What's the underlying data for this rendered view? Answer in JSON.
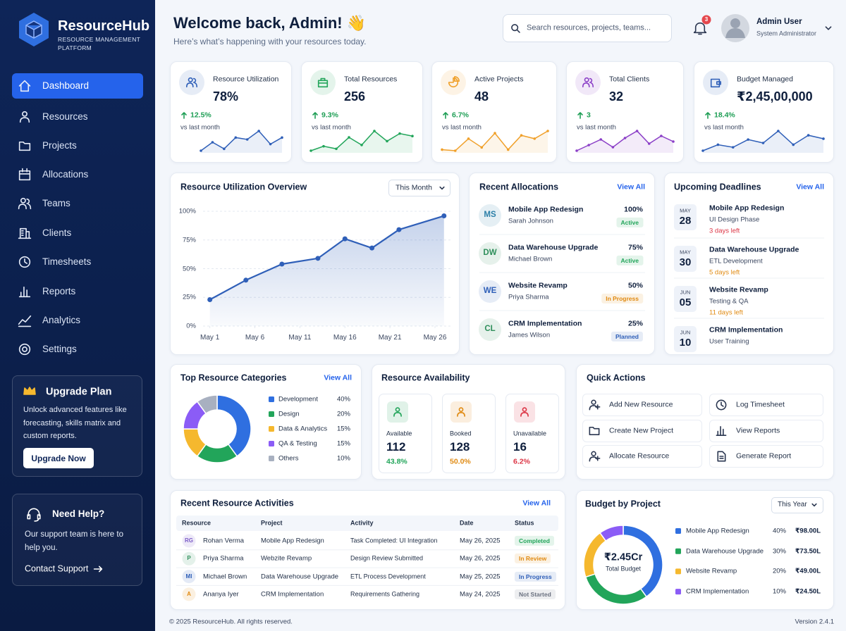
{
  "sidebar": {
    "brand": "ResourceHub",
    "tagline": "RESOURCE MANAGEMENT PLATFORM",
    "nav": [
      "Dashboard",
      "Resources",
      "Projects",
      "Allocations",
      "Teams",
      "Clients",
      "Timesheets",
      "Reports",
      "Analytics",
      "Settings"
    ],
    "upgrade": {
      "title": "Upgrade Plan",
      "text": "Unlock advanced features like forecasting, skills matrix and custom reports.",
      "button": "Upgrade Now"
    },
    "help": {
      "title": "Need Help?",
      "text": "Our support team is here to help you.",
      "link": "Contact Support"
    }
  },
  "header": {
    "title": "Welcome back, Admin! 👋",
    "subtitle": "Here’s what’s happening with your resources today.",
    "search_placeholder": "Search resources, projects, teams...",
    "notifications": 3,
    "user": "Admin User",
    "role": "System Administrator"
  },
  "kpis": [
    {
      "label": "Resource Utilization",
      "value": "78%",
      "change": "12.5%",
      "note": "vs last month",
      "color": "#2f5fb8",
      "trend": [
        30,
        48,
        34,
        58,
        54,
        72,
        44,
        58
      ]
    },
    {
      "label": "Total Resources",
      "value": "256",
      "change": "9.3%",
      "note": "vs last month",
      "color": "#22a55a",
      "trend": [
        25,
        32,
        28,
        46,
        34,
        56,
        40,
        52,
        48
      ]
    },
    {
      "label": "Active Projects",
      "value": "48",
      "change": "6.7%",
      "note": "vs last month",
      "color": "#f0a02a",
      "trend": [
        30,
        28,
        50,
        34,
        60,
        30,
        56,
        50,
        64
      ]
    },
    {
      "label": "Total Clients",
      "value": "32",
      "change": "3",
      "note": "vs last month",
      "color": "#8b3fc7",
      "trend": [
        20,
        36,
        52,
        30,
        56,
        76,
        40,
        62,
        46
      ]
    },
    {
      "label": "Budget Managed",
      "value": "₹2,45,00,000",
      "change": "18.4%",
      "note": "vs last month",
      "color": "#2f5fb8",
      "trend": [
        26,
        40,
        34,
        52,
        44,
        72,
        40,
        62,
        54
      ]
    }
  ],
  "utilization_chart": {
    "type": "line",
    "title": "Resource Utilization Overview",
    "period": "This Month",
    "x": [
      1,
      5,
      9,
      13,
      16,
      19,
      22,
      27
    ],
    "values": [
      23,
      40,
      54,
      59,
      76,
      68,
      84,
      96
    ],
    "xlim": [
      0.4,
      27.8
    ],
    "xticks": [
      {
        "value": 1,
        "label": "May 1"
      },
      {
        "value": 6,
        "label": "May 6"
      },
      {
        "value": 11,
        "label": "May 11"
      },
      {
        "value": 16,
        "label": "May 16"
      },
      {
        "value": 21,
        "label": "May 21"
      },
      {
        "value": 26,
        "label": "May 26"
      }
    ],
    "ylim": [
      0,
      100
    ],
    "yticks": [
      {
        "value": 0,
        "label": "0%"
      },
      {
        "value": 25,
        "label": "25%"
      },
      {
        "value": 50,
        "label": "50%"
      },
      {
        "value": 75,
        "label": "75%"
      },
      {
        "value": 100,
        "label": "100%"
      }
    ],
    "color": "#2f5fb8",
    "grid": true
  },
  "recent_allocations": {
    "title": "Recent Allocations",
    "link": "View All",
    "items": [
      {
        "initials": "MS",
        "project": "Mobile App Redesign",
        "person": "Sarah Johnson",
        "allocation": "100%",
        "status": "Active",
        "status_color": "#22a55a"
      },
      {
        "initials": "DW",
        "project": "Data Warehouse Upgrade",
        "person": "Michael Brown",
        "allocation": "75%",
        "status": "Active",
        "status_color": "#22a55a"
      },
      {
        "initials": "WE",
        "project": "Website Revamp",
        "person": "Priya Sharma",
        "allocation": "50%",
        "status": "In Progress",
        "status_color": "#e08a12"
      },
      {
        "initials": "CL",
        "project": "CRM Implementation",
        "person": "James Wilson",
        "allocation": "25%",
        "status": "Planned",
        "status_color": "#2f5fb8"
      }
    ]
  },
  "deadlines": {
    "title": "Upcoming Deadlines",
    "link": "View All",
    "items": [
      {
        "month": "MAY",
        "day": "28",
        "project": "Mobile App Redesign",
        "phase": "UI Design Phase",
        "remaining": "3 days left",
        "color": "#dc3545"
      },
      {
        "month": "MAY",
        "day": "30",
        "project": "Data Warehouse Upgrade",
        "phase": "ETL Development",
        "remaining": "5 days left",
        "color": "#e08a12"
      },
      {
        "month": "JUN",
        "day": "05",
        "project": "Website Revamp",
        "phase": "Testing & QA",
        "remaining": "11 days left",
        "color": "#e08a12"
      },
      {
        "month": "JUN",
        "day": "10",
        "project": "CRM Implementation",
        "phase": "User Training"
      }
    ]
  },
  "categories": {
    "type": "pie",
    "title": "Top Resource Categories",
    "link": "View All",
    "categories": [
      "Development",
      "Design",
      "Data & Analytics",
      "QA & Testing",
      "Others"
    ],
    "values": [
      40,
      20,
      15,
      15,
      10
    ],
    "value_labels": [
      "40%",
      "20%",
      "15%",
      "15%",
      "10%"
    ],
    "colors": [
      "#2f6fe0",
      "#22a55a",
      "#f5b82e",
      "#8b5cf6",
      "#a8b0c0"
    ]
  },
  "availability": {
    "title": "Resource Availability",
    "items": [
      {
        "label": "Available",
        "count": 112,
        "share": "43.8%",
        "color": "#22a55a"
      },
      {
        "label": "Booked",
        "count": 128,
        "share": "50.0%",
        "color": "#e08a12"
      },
      {
        "label": "Unavailable",
        "count": 16,
        "share": "6.2%",
        "color": "#dc3545"
      }
    ]
  },
  "quick_actions": {
    "title": "Quick Actions",
    "actions": [
      "Add New Resource",
      "Log Timesheet",
      "Create New Project",
      "View Reports",
      "Allocate Resource",
      "Generate Report"
    ]
  },
  "activities": {
    "title": "Recent Resource Activities",
    "link": "View All",
    "columns": [
      "Resource",
      "Project",
      "Activity",
      "Date",
      "Status"
    ],
    "rows": [
      {
        "initials": "RG",
        "resource": "Rohan Verma",
        "project": "Mobile App Redesign",
        "activity": "Task Completed: UI Integration",
        "date": "May 26, 2025",
        "status": "Completed",
        "status_color": "#22a55a"
      },
      {
        "initials": "P",
        "resource": "Priya Sharma",
        "project": "Webzite Revamp",
        "activity": "Design Review Submitted",
        "date": "May 26, 2025",
        "status": "In Review",
        "status_color": "#e08a12"
      },
      {
        "initials": "MI",
        "resource": "Michael Brown",
        "project": "Data Warehouse Upgrade",
        "activity": "ETL Process Development",
        "date": "May 25, 2025",
        "status": "In Progress",
        "status_color": "#2f5fb8"
      },
      {
        "initials": "A",
        "resource": "Ananya Iyer",
        "project": "CRM Implementation",
        "activity": "Requirements Gathering",
        "date": "May 24, 2025",
        "status": "Not Started",
        "status_color": "#6b7280"
      }
    ]
  },
  "budget": {
    "type": "pie",
    "title": "Budget by Project",
    "period": "This Year",
    "total": "₹2.45Cr",
    "total_label": "Total Budget",
    "categories": [
      "Mobile App Redesign",
      "Data Warehouse Upgrade",
      "Website Revamp",
      "CRM Implementation"
    ],
    "values": [
      40,
      30,
      20,
      10
    ],
    "value_labels": [
      "40%",
      "30%",
      "20%",
      "10%"
    ],
    "amounts": [
      "₹98.00L",
      "₹73.50L",
      "₹49.00L",
      "₹24.50L"
    ],
    "colors": [
      "#2f6fe0",
      "#22a55a",
      "#f5b82e",
      "#8b5cf6"
    ]
  },
  "footer": {
    "copyright": "© 2025 ResourceHub. All rights reserved.",
    "version": "Version 2.4.1"
  }
}
